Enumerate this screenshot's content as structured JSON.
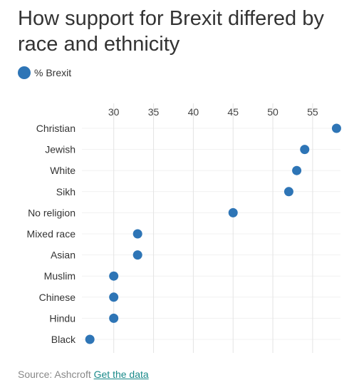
{
  "header": {
    "title": "How support for Brexit differed by race and ethnicity"
  },
  "legend": {
    "label": "% Brexit",
    "color": "#2e75b6"
  },
  "footer": {
    "source_text": "Source: Ashcroft",
    "link_text": "Get the data"
  },
  "chart_data": {
    "type": "scatter",
    "orientation": "horizontal-dot",
    "categories": [
      "Christian",
      "Jewish",
      "White",
      "Sikh",
      "No religion",
      "Mixed race",
      "Asian",
      "Muslim",
      "Chinese",
      "Hindu",
      "Black"
    ],
    "series": [
      {
        "name": "% Brexit",
        "values": [
          58,
          54,
          53,
          52,
          45,
          33,
          33,
          30,
          30,
          30,
          27
        ]
      }
    ],
    "x_ticks": [
      30,
      35,
      40,
      45,
      50,
      55
    ],
    "xlim": [
      26,
      58.5
    ],
    "grid": true,
    "legend_position": "top-left"
  }
}
